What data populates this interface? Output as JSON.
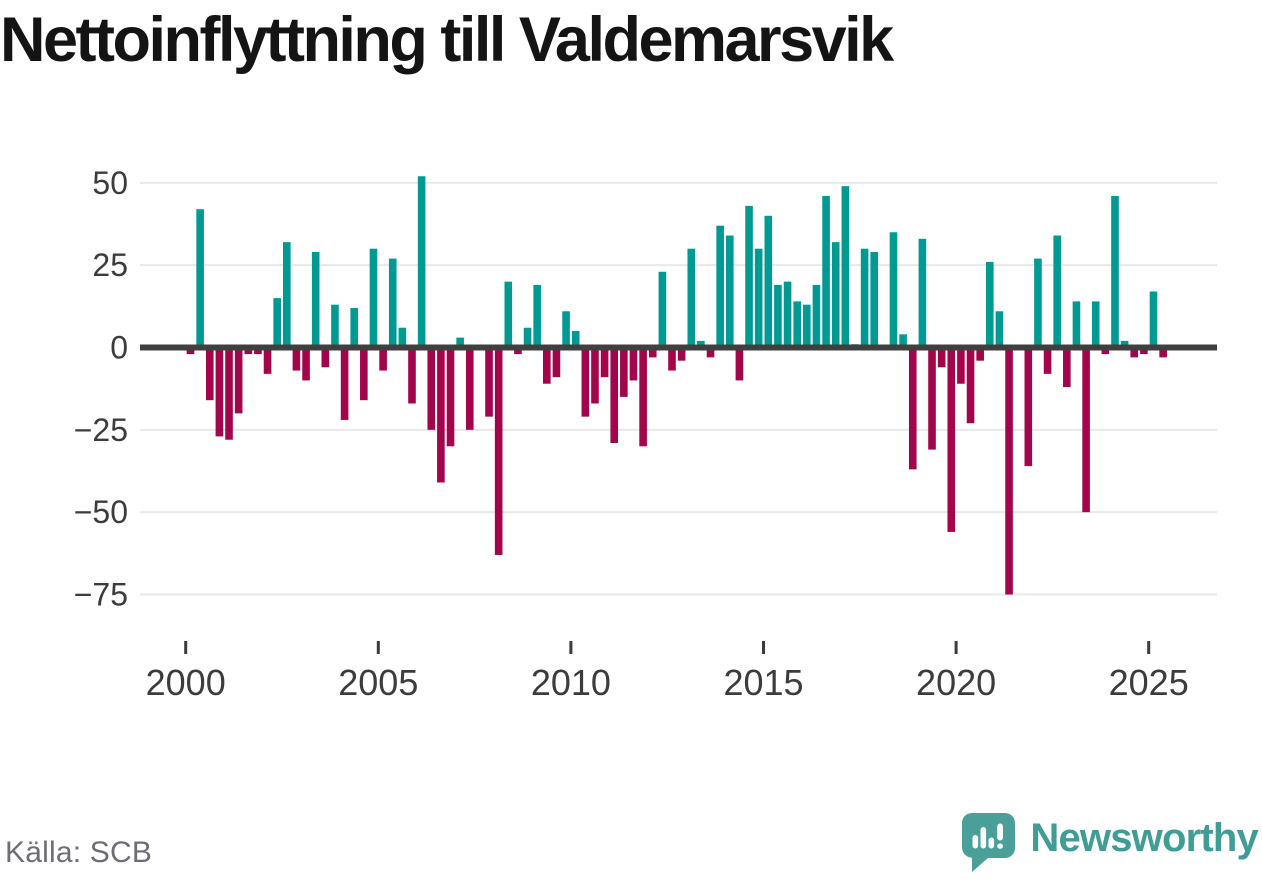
{
  "title": "Nettoinflyttning till Valdemarsvik",
  "source": "Källa: SCB",
  "branding": {
    "name": "Newsworthy",
    "icon": "speech-bubble-bar-chart-exclamation"
  },
  "colors": {
    "positive_bar": "#009a93",
    "negative_bar": "#a20549",
    "gridline": "#e8e8e8",
    "zero_line": "#3f3f3f",
    "axis_text": "#3c3c3c",
    "title_text": "#141414",
    "source_text": "#6d6d77",
    "brand_teal": "#3f9d95",
    "background": "#ffffff"
  },
  "chart_data": {
    "type": "bar",
    "title": "Nettoinflyttning till Valdemarsvik",
    "frequency": "quarterly",
    "start_period": "2000 Q1",
    "end_period": "2025 Q2",
    "xlabel": "",
    "ylabel": "",
    "ylim": [
      -80,
      56
    ],
    "grid": "horizontal",
    "legend": "none",
    "y_ticks": [
      50,
      25,
      0,
      -25,
      -50,
      -75
    ],
    "y_tick_labels": [
      "50",
      "25",
      "0",
      "−25",
      "−50",
      "−75"
    ],
    "x_tick_years": [
      2000,
      2005,
      2010,
      2015,
      2020,
      2025
    ],
    "x_tick_labels": [
      "2000",
      "2005",
      "2010",
      "2015",
      "2020",
      "2025"
    ],
    "years": [
      {
        "year": 2000,
        "quarterly_values": [
          -2,
          42,
          -16,
          -27
        ]
      },
      {
        "year": 2001,
        "quarterly_values": [
          -28,
          -20,
          -2,
          -2
        ]
      },
      {
        "year": 2002,
        "quarterly_values": [
          -8,
          15,
          32,
          -7
        ]
      },
      {
        "year": 2003,
        "quarterly_values": [
          -10,
          29,
          -6,
          13
        ]
      },
      {
        "year": 2004,
        "quarterly_values": [
          -22,
          12,
          -16,
          30
        ]
      },
      {
        "year": 2005,
        "quarterly_values": [
          -7,
          27,
          6,
          -17
        ]
      },
      {
        "year": 2006,
        "quarterly_values": [
          52,
          -25,
          -41,
          -30
        ]
      },
      {
        "year": 2007,
        "quarterly_values": [
          3,
          -25,
          0,
          -21
        ]
      },
      {
        "year": 2008,
        "quarterly_values": [
          -63,
          20,
          -2,
          6
        ]
      },
      {
        "year": 2009,
        "quarterly_values": [
          19,
          -11,
          -9,
          11
        ]
      },
      {
        "year": 2010,
        "quarterly_values": [
          5,
          -21,
          -17,
          -9
        ]
      },
      {
        "year": 2011,
        "quarterly_values": [
          -29,
          -15,
          -10,
          -30
        ]
      },
      {
        "year": 2012,
        "quarterly_values": [
          -3,
          23,
          -7,
          -4
        ]
      },
      {
        "year": 2013,
        "quarterly_values": [
          30,
          2,
          -3,
          37
        ]
      },
      {
        "year": 2014,
        "quarterly_values": [
          34,
          -10,
          43,
          30
        ]
      },
      {
        "year": 2015,
        "quarterly_values": [
          40,
          19,
          20,
          14
        ]
      },
      {
        "year": 2016,
        "quarterly_values": [
          13,
          19,
          46,
          32
        ]
      },
      {
        "year": 2017,
        "quarterly_values": [
          49,
          1,
          30,
          29
        ]
      },
      {
        "year": 2018,
        "quarterly_values": [
          0,
          35,
          4,
          -37
        ]
      },
      {
        "year": 2019,
        "quarterly_values": [
          33,
          -31,
          -6,
          -56
        ]
      },
      {
        "year": 2020,
        "quarterly_values": [
          -11,
          -23,
          -4,
          26
        ]
      },
      {
        "year": 2021,
        "quarterly_values": [
          11,
          -75,
          0,
          -36
        ]
      },
      {
        "year": 2022,
        "quarterly_values": [
          27,
          -8,
          34,
          -12
        ]
      },
      {
        "year": 2023,
        "quarterly_values": [
          14,
          -50,
          14,
          -2
        ]
      },
      {
        "year": 2024,
        "quarterly_values": [
          46,
          2,
          -3,
          -2
        ]
      },
      {
        "year": 2025,
        "quarterly_values": [
          17,
          -3
        ]
      }
    ]
  }
}
